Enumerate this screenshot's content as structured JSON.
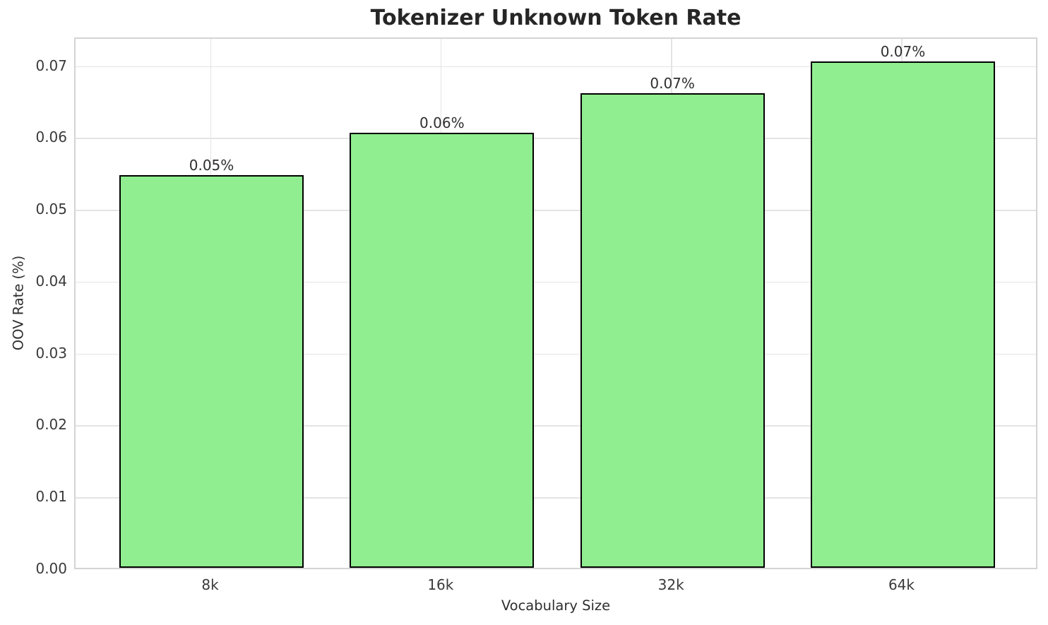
{
  "chart_data": {
    "type": "bar",
    "title": "Tokenizer Unknown Token Rate",
    "xlabel": "Vocabulary Size",
    "ylabel": "OOV Rate (%)",
    "categories": [
      "8k",
      "16k",
      "32k",
      "64k"
    ],
    "values": [
      0.0546,
      0.0605,
      0.066,
      0.0705
    ],
    "bar_labels": [
      "0.05%",
      "0.06%",
      "0.07%",
      "0.07%"
    ],
    "ylim": [
      0,
      0.074
    ],
    "yticks": [
      0.0,
      0.01,
      0.02,
      0.03,
      0.04,
      0.05,
      0.06,
      0.07
    ],
    "ytick_labels": [
      "0.00",
      "0.01",
      "0.02",
      "0.03",
      "0.04",
      "0.05",
      "0.06",
      "0.07"
    ],
    "grid": true,
    "legend": "none",
    "colors": {
      "bar_fill": "#90EE90",
      "bar_edge": "#000000",
      "grid_line": "#e4e4e4",
      "spine": "#d4d4d4",
      "tick_text": "#3a3a3a",
      "title_text": "#262626"
    }
  }
}
